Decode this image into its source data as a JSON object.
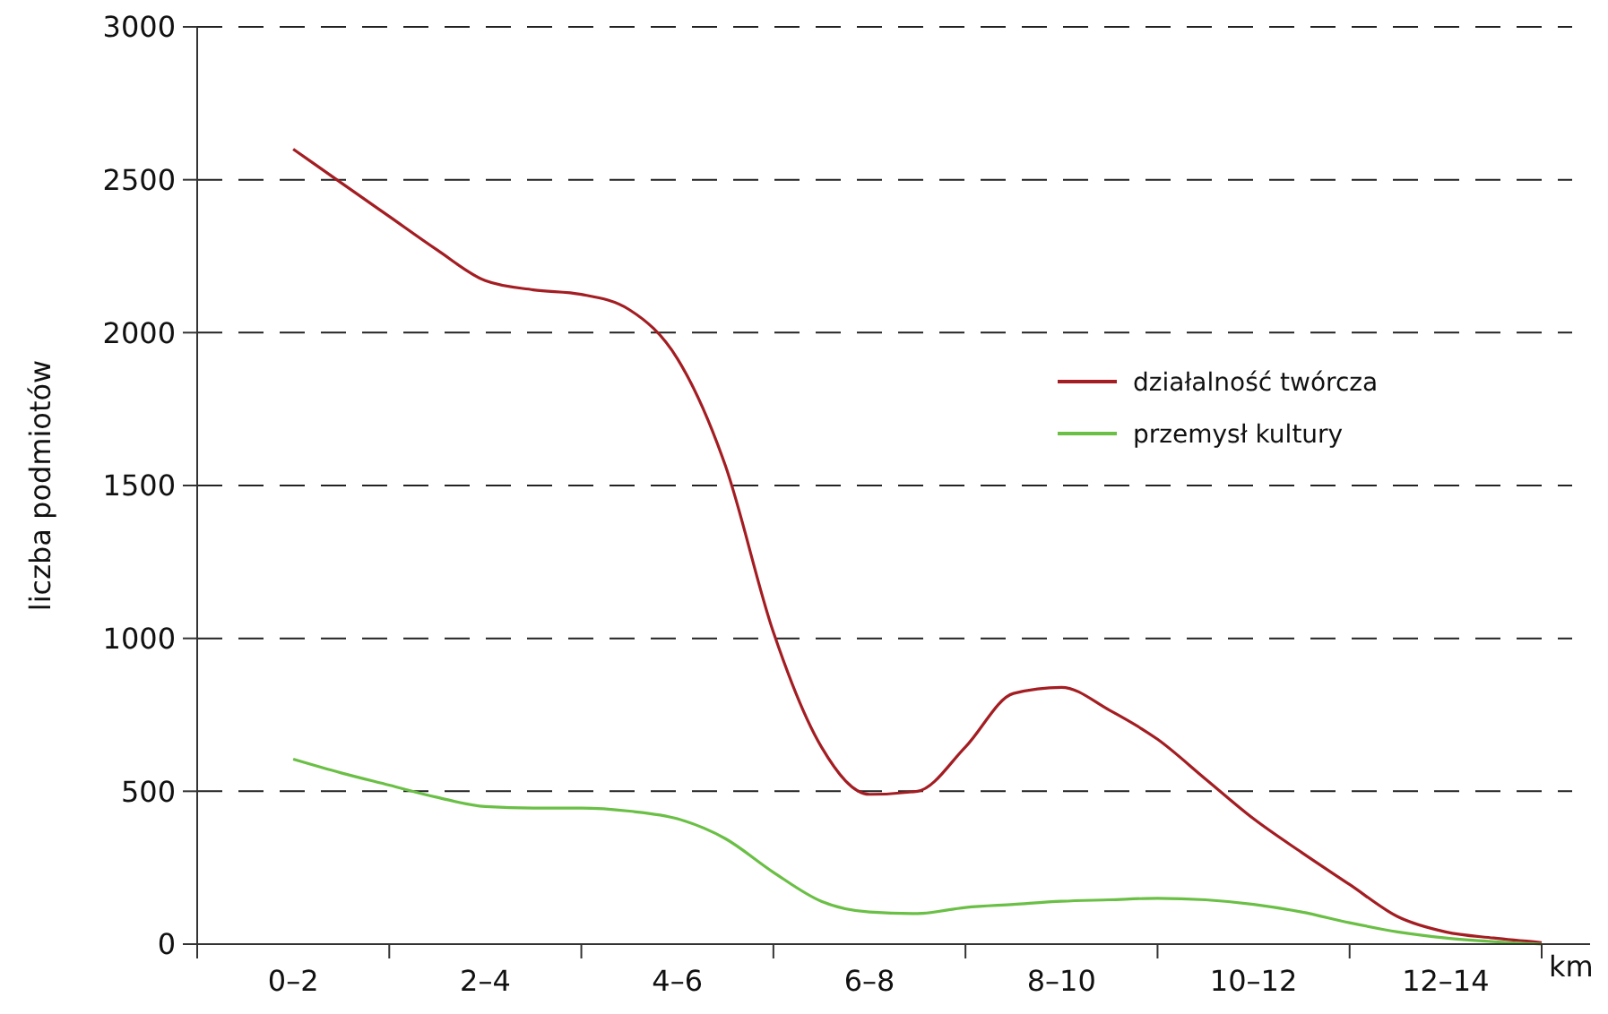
{
  "chart_data": {
    "type": "line",
    "xlabel": "km",
    "ylabel": "liczba podmiotów",
    "categories": [
      null,
      null,
      "0–2",
      null,
      null,
      null,
      "2–4",
      null,
      null,
      null,
      "4–6",
      null,
      null,
      null,
      "6–8",
      null,
      null,
      null,
      "8–10",
      null,
      null,
      null,
      "10–12",
      null,
      null,
      null,
      "12–14",
      null,
      null
    ],
    "ylim": [
      0,
      3000
    ],
    "yticks": [
      0,
      500,
      1000,
      1500,
      2000,
      2500,
      3000
    ],
    "grid": "y",
    "legend": "right",
    "marker": "none",
    "line_style": "solid",
    "series": [
      {
        "name": "działalność twórcza",
        "color": "#a31d22",
        "values": [
          null,
          null,
          2600,
          2490,
          2380,
          2270,
          2170,
          2140,
          2125,
          2075,
          1915,
          1565,
          1020,
          645,
          490,
          500,
          645,
          820,
          840,
          765,
          670,
          540,
          410,
          300,
          195,
          90,
          40,
          20,
          5
        ]
      },
      {
        "name": "przemysł kultury",
        "color": "#6abf45",
        "values": [
          null,
          null,
          605,
          560,
          520,
          480,
          450,
          445,
          445,
          435,
          410,
          345,
          235,
          140,
          105,
          100,
          120,
          130,
          140,
          145,
          150,
          145,
          130,
          105,
          70,
          40,
          20,
          8,
          0
        ]
      }
    ]
  }
}
